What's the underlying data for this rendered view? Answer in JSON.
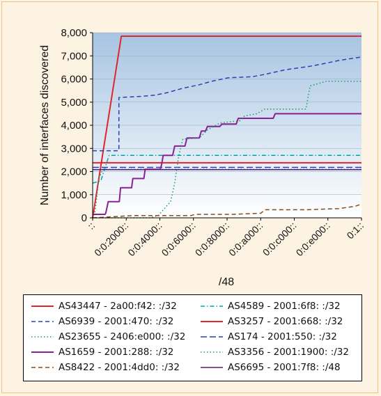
{
  "chart_data": {
    "type": "line",
    "xlabel": "/48",
    "ylabel": "Number of interfaces discovered",
    "xlim": [
      0,
      65536
    ],
    "ylim": [
      0,
      8000
    ],
    "y_ticks": [
      0,
      1000,
      2000,
      3000,
      4000,
      5000,
      6000,
      7000,
      8000
    ],
    "y_tick_labels": [
      "0",
      "1,000",
      "2,000",
      "3,000",
      "4,000",
      "5,000",
      "6,000",
      "7,000",
      "8,000"
    ],
    "x_ticks": [
      0,
      8192,
      16384,
      24576,
      32768,
      40960,
      49152,
      57344,
      65536
    ],
    "x_tick_labels": [
      "::",
      "0:0:2000::",
      "0:0:4000::",
      "0:0:6000::",
      "0:0:8000::",
      "0:0:a000::",
      "0:0:c000::",
      "0:0:e000::",
      "0:1::"
    ],
    "legend_position": "below",
    "background": "gradient-blue",
    "series": [
      {
        "name": "AS43447 - 2a00:f42: :/32",
        "color": "#e0262b",
        "dash": "solid",
        "width": 2,
        "points": [
          [
            0,
            0
          ],
          [
            7000,
            7850
          ],
          [
            65536,
            7850
          ]
        ]
      },
      {
        "name": "AS4589 - 2001:6f8: :/32",
        "color": "#00a3a3",
        "dash": "dashdot",
        "width": 1.5,
        "points": [
          [
            0,
            1500
          ],
          [
            2000,
            1600
          ],
          [
            4000,
            2700
          ],
          [
            65536,
            2700
          ]
        ]
      },
      {
        "name": "AS6939 - 2001:470: :/32",
        "color": "#2b3fb0",
        "dash": "dash",
        "width": 1.5,
        "points": [
          [
            0,
            2900
          ],
          [
            6400,
            2900
          ],
          [
            6400,
            5200
          ],
          [
            12000,
            5250
          ],
          [
            15000,
            5300
          ],
          [
            18000,
            5400
          ],
          [
            22000,
            5600
          ],
          [
            26000,
            5750
          ],
          [
            29000,
            5900
          ],
          [
            33000,
            6050
          ],
          [
            39000,
            6100
          ],
          [
            42000,
            6200
          ],
          [
            47000,
            6400
          ],
          [
            53000,
            6550
          ],
          [
            56000,
            6650
          ],
          [
            60000,
            6800
          ],
          [
            65536,
            6950
          ]
        ]
      },
      {
        "name": "AS3257 - 2001:668: :/32",
        "color": "#e0262b",
        "dash": "solid",
        "width": 2,
        "points": [
          [
            0,
            2380
          ],
          [
            65536,
            2380
          ]
        ]
      },
      {
        "name": "AS23655 - 2406:e000: :/32",
        "color": "#1a9a5a",
        "dash": "dot",
        "width": 1.5,
        "points": [
          [
            0,
            0
          ],
          [
            400,
            100
          ],
          [
            800,
            550
          ],
          [
            1500,
            1700
          ],
          [
            2500,
            2100
          ],
          [
            65536,
            2100
          ]
        ]
      },
      {
        "name": "AS174 - 2001:550: :/32",
        "color": "#2b3fb0",
        "dash": "dashlong",
        "width": 1.5,
        "points": [
          [
            0,
            2180
          ],
          [
            65536,
            2180
          ]
        ]
      },
      {
        "name": "AS1659 - 2001:288: :/32",
        "color": "#8a2096",
        "dash": "solid",
        "width": 2,
        "points": [
          [
            0,
            150
          ],
          [
            1000,
            150
          ],
          [
            3000,
            150
          ],
          [
            3200,
            200
          ],
          [
            3800,
            700
          ],
          [
            6500,
            700
          ],
          [
            6800,
            1300
          ],
          [
            9500,
            1300
          ],
          [
            9800,
            1700
          ],
          [
            12500,
            1700
          ],
          [
            12800,
            2100
          ],
          [
            16500,
            2100
          ],
          [
            16800,
            2300
          ],
          [
            17200,
            2700
          ],
          [
            19500,
            2700
          ],
          [
            20000,
            3100
          ],
          [
            22500,
            3100
          ],
          [
            23000,
            3450
          ],
          [
            26000,
            3450
          ],
          [
            26500,
            3750
          ],
          [
            27500,
            3750
          ],
          [
            28000,
            3950
          ],
          [
            31000,
            3950
          ],
          [
            31500,
            4050
          ],
          [
            35000,
            4050
          ],
          [
            35500,
            4300
          ],
          [
            44000,
            4300
          ],
          [
            44500,
            4500
          ],
          [
            65536,
            4500
          ]
        ]
      },
      {
        "name": "AS3356 - 2001:1900: :/32",
        "color": "#1a9a5a",
        "dash": "dot",
        "width": 1.5,
        "points": [
          [
            0,
            0
          ],
          [
            14000,
            0
          ],
          [
            16000,
            100
          ],
          [
            19000,
            700
          ],
          [
            20000,
            1500
          ],
          [
            21000,
            2700
          ],
          [
            22000,
            3400
          ],
          [
            26000,
            3450
          ],
          [
            28000,
            3800
          ],
          [
            31000,
            4100
          ],
          [
            36000,
            4200
          ],
          [
            37000,
            4400
          ],
          [
            40000,
            4500
          ],
          [
            42000,
            4700
          ],
          [
            52000,
            4700
          ],
          [
            53000,
            5700
          ],
          [
            57000,
            5900
          ],
          [
            65536,
            5900
          ]
        ]
      },
      {
        "name": "AS8422 - 2001:4dd0: :/32",
        "color": "#8a4a16",
        "dash": "dash",
        "width": 1.5,
        "points": [
          [
            0,
            0
          ],
          [
            10000,
            100
          ],
          [
            24000,
            100
          ],
          [
            25000,
            150
          ],
          [
            34000,
            150
          ],
          [
            41000,
            200
          ],
          [
            42000,
            350
          ],
          [
            52000,
            350
          ],
          [
            60000,
            400
          ],
          [
            64000,
            500
          ],
          [
            65536,
            600
          ]
        ]
      },
      {
        "name": "AS6695 - 2001:7f8: :/48",
        "color": "#5c1a78",
        "dash": "solid",
        "width": 1.5,
        "points": [
          [
            0,
            2080
          ],
          [
            65536,
            2080
          ]
        ]
      }
    ]
  }
}
